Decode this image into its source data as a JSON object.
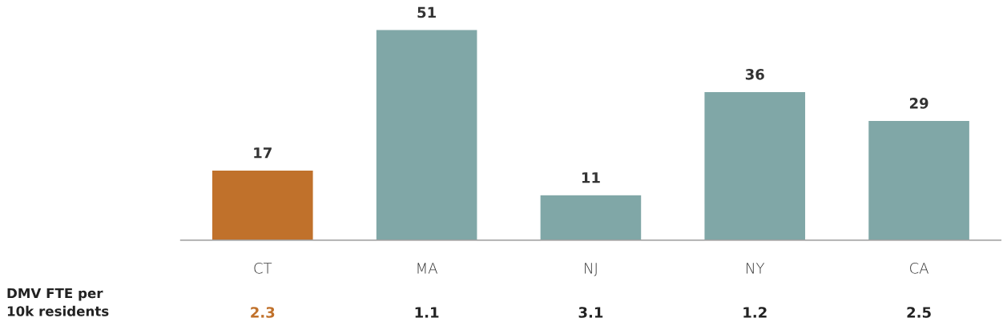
{
  "chart_data": {
    "type": "bar",
    "categories": [
      "CT",
      "MA",
      "NJ",
      "NY",
      "CA"
    ],
    "values": [
      17,
      51,
      11,
      36,
      29
    ],
    "colors": [
      "#c0712b",
      "#80a7a7",
      "#80a7a7",
      "#80a7a7",
      "#80a7a7"
    ],
    "data_labels": true,
    "grid": false,
    "legend": false,
    "annotations": [
      "DMV FTE per\n10k residents",
      "2.3",
      "1.1",
      "3.1",
      "1.2",
      "2.5"
    ]
  }
}
